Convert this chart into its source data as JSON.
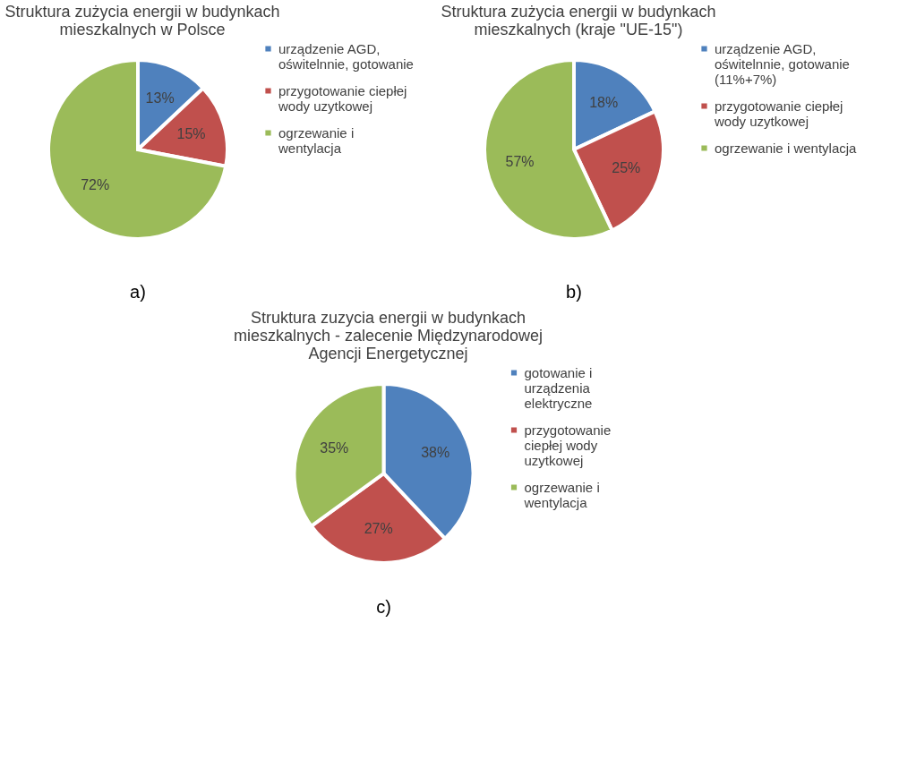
{
  "chart_data": [
    {
      "type": "pie",
      "title": "Struktura zużycia energii w budynkach mieszkalnych w Polsce",
      "categories": [
        "urządzenie AGD, oświtelnnie, gotowanie",
        "przygotowanie ciepłej wody uzytkowej",
        "ogrzewanie i wentylacja"
      ],
      "values": [
        13,
        15,
        72
      ],
      "colors": [
        "#4f81bd",
        "#c0504d",
        "#9bbb59"
      ],
      "value_labels": [
        "13%",
        "15%",
        "72%"
      ],
      "legend": "right",
      "annotations": [
        "a)"
      ]
    },
    {
      "type": "pie",
      "title": "Struktura zużycia energii w budynkach mieszkalnych (kraje \"UE-15\")",
      "categories": [
        "urządzenie AGD, oświtelnnie, gotowanie (11%+7%)",
        "przygotowanie ciepłej wody uzytkowej",
        "ogrzewanie i wentylacja"
      ],
      "values": [
        18,
        25,
        57
      ],
      "colors": [
        "#4f81bd",
        "#c0504d",
        "#9bbb59"
      ],
      "value_labels": [
        "18%",
        "25%",
        "57%"
      ],
      "legend": "right",
      "annotations": [
        "b)"
      ]
    },
    {
      "type": "pie",
      "title": "Struktura zuzycia energii w budynkach mieszkalnych - zalecenie Międzynarodowej Agencji Energetycznej",
      "categories": [
        "gotowanie i urządzenia elektryczne",
        "przygotowanie ciepłej wody uzytkowej",
        "ogrzewanie i wentylacja"
      ],
      "values": [
        38,
        27,
        35
      ],
      "colors": [
        "#4f81bd",
        "#c0504d",
        "#9bbb59"
      ],
      "value_labels": [
        "38%",
        "27%",
        "35%"
      ],
      "legend": "right",
      "annotations": [
        "c)"
      ]
    }
  ]
}
